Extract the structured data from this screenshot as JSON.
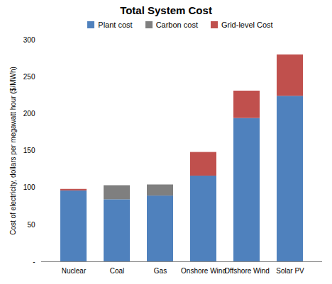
{
  "chart_data": {
    "type": "bar",
    "title": "Total System Cost",
    "y_label": "Cost of electricity, dollars per megawatt hour ($/MWh)",
    "categories": [
      "Nuclear",
      "Coal",
      "Gas",
      "Onshore Wind",
      "Offshore Wind",
      "Solar PV"
    ],
    "series": [
      {
        "name": "Plant cost",
        "color": "#4f81bd",
        "values": [
          96,
          84,
          89,
          116,
          194,
          224
        ]
      },
      {
        "name": "Carbon cost",
        "color": "#7f7f7f",
        "values": [
          0,
          19,
          15,
          0,
          0,
          0
        ]
      },
      {
        "name": "Grid-level Cost",
        "color": "#c0504d",
        "values": [
          2,
          0,
          0,
          32,
          37,
          56
        ]
      }
    ],
    "stacked": true,
    "ylim": [
      0,
      300
    ],
    "yticks": [
      {
        "value": 0,
        "label": "-"
      },
      50,
      100,
      150,
      200,
      250,
      300
    ],
    "grid": false,
    "legend": "top"
  }
}
